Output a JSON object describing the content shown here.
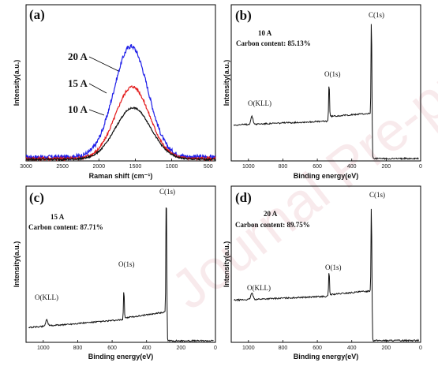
{
  "watermark": "Journal Pre-proof",
  "chart_data": [
    {
      "type": "line",
      "panel_label": "(a)",
      "xlabel": "Raman shift (cm⁻¹)",
      "ylabel": "Intensity(a.u.)",
      "xlim": [
        3000,
        400
      ],
      "x_reversed": true,
      "xticks": [
        "3000",
        "2500",
        "2000",
        "1500",
        "1000",
        "500"
      ],
      "xtick_values": [
        3000,
        2500,
        2000,
        1500,
        1000,
        500
      ],
      "ylim": [
        0,
        10
      ],
      "series": [
        {
          "name": "20 A",
          "color": "#1f1fe8",
          "center": 1560,
          "width": 330,
          "peak": 7.1,
          "baseline": 0.25,
          "noise": 0.14
        },
        {
          "name": "15 A",
          "color": "#e31a1a",
          "center": 1540,
          "width": 330,
          "peak": 4.6,
          "baseline": 0.15,
          "noise": 0.09
        },
        {
          "name": "10 A",
          "color": "#111111",
          "center": 1530,
          "width": 345,
          "peak": 3.3,
          "baseline": 0.1,
          "noise": 0.05
        }
      ],
      "annotations": [
        "20 A",
        "15 A",
        "10 A"
      ]
    },
    {
      "type": "line",
      "panel_label": "(b)",
      "current": "10 A",
      "carbon_content": "Carbon content: 85.13%",
      "xlabel": "Binding energy(eV)",
      "ylabel": "Intensity(a.u.)",
      "xlim": [
        1100,
        0
      ],
      "x_reversed": true,
      "xticks": [
        "1000",
        "800",
        "600",
        "400",
        "200",
        "0"
      ],
      "xtick_values": [
        1000,
        800,
        600,
        400,
        200,
        0
      ],
      "ylim": [
        0,
        10
      ],
      "peaks": [
        {
          "label": "O(KLL)",
          "x": 980,
          "height": 0.5
        },
        {
          "label": "O(1s)",
          "x": 532,
          "height": 2.4
        },
        {
          "label": "C(1s)",
          "x": 285,
          "height": 7.9
        }
      ],
      "series": [
        {
          "color": "#111111",
          "start": 2.3,
          "pre_o": 2.55,
          "post_o": 2.85,
          "pre_c": 3.05,
          "post_c": 0.15
        }
      ]
    },
    {
      "type": "line",
      "panel_label": "(c)",
      "current": "15 A",
      "carbon_content": "Carbon content: 87.71%",
      "xlabel": "Binding energy(eV)",
      "ylabel": "Intensity(a.u.)",
      "xlim": [
        1100,
        0
      ],
      "x_reversed": true,
      "xticks": [
        "1000",
        "800",
        "600",
        "400",
        "200",
        "0"
      ],
      "xtick_values": [
        1000,
        800,
        600,
        400,
        200,
        0
      ],
      "ylim": [
        0,
        10
      ],
      "peaks": [
        {
          "label": "O(KLL)",
          "x": 980,
          "height": 0.4
        },
        {
          "label": "O(1s)",
          "x": 532,
          "height": 1.9
        },
        {
          "label": "C(1s)",
          "x": 285,
          "height": 9.2
        }
      ],
      "series": [
        {
          "color": "#111111",
          "start": 0.95,
          "pre_o": 1.45,
          "post_o": 1.55,
          "pre_c": 1.95,
          "post_c": 0.1
        }
      ]
    },
    {
      "type": "line",
      "panel_label": "(d)",
      "current": "20 A",
      "carbon_content": "Carbon content: 89.75%",
      "xlabel": "Binding energy(eV)",
      "ylabel": "Intensity(a.u.)",
      "xlim": [
        1100,
        0
      ],
      "x_reversed": true,
      "xticks": [
        "1000",
        "800",
        "600",
        "400",
        "200",
        "0"
      ],
      "xtick_values": [
        1000,
        800,
        600,
        400,
        200,
        0
      ],
      "ylim": [
        0,
        10
      ],
      "peaks": [
        {
          "label": "O(KLL)",
          "x": 980,
          "height": 0.4
        },
        {
          "label": "O(1s)",
          "x": 532,
          "height": 1.6
        },
        {
          "label": "C(1s)",
          "x": 285,
          "height": 7.3
        }
      ],
      "series": [
        {
          "color": "#111111",
          "start": 2.7,
          "pre_o": 2.95,
          "post_o": 3.05,
          "pre_c": 3.3,
          "post_c": 0.12
        }
      ]
    }
  ]
}
